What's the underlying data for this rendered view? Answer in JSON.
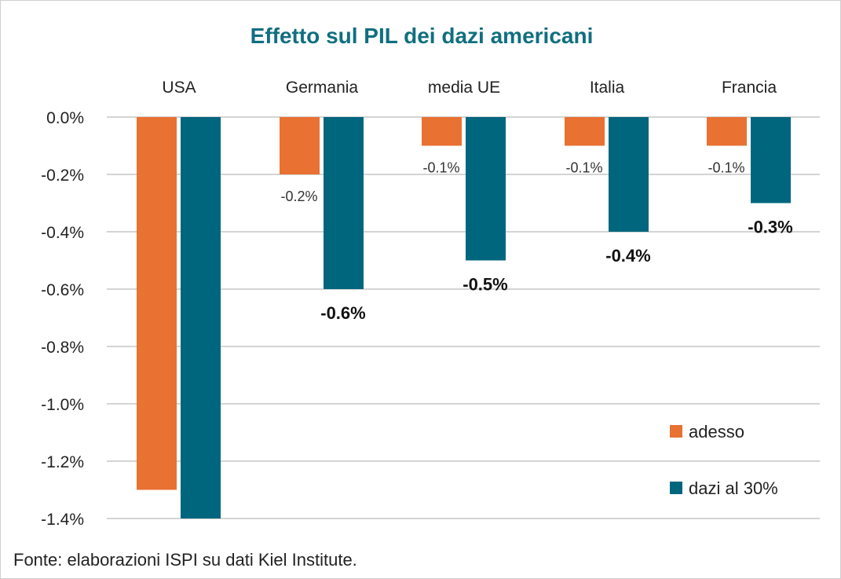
{
  "chart_data": {
    "type": "bar",
    "title": "Effetto sul PIL dei dazi americani",
    "categories": [
      "USA",
      "Germania",
      "media UE",
      "Italia",
      "Francia"
    ],
    "series": [
      {
        "name": "adesso",
        "color": "#E97132",
        "values": [
          -1.3,
          -0.2,
          -0.1,
          -0.1,
          -0.1
        ],
        "labels": [
          null,
          "-0.2%",
          "-0.1%",
          "-0.1%",
          "-0.1%"
        ]
      },
      {
        "name": "dazi al 30%",
        "color": "#00667E",
        "values": [
          -1.4,
          -0.6,
          -0.5,
          -0.4,
          -0.3
        ],
        "labels": [
          null,
          "-0.6%",
          "-0.5%",
          "-0.4%",
          "-0.3%"
        ]
      }
    ],
    "yticks": [
      "0.0%",
      "-0.2%",
      "-0.4%",
      "-0.6%",
      "-0.8%",
      "-1.0%",
      "-1.2%",
      "-1.4%"
    ],
    "ytick_values": [
      0,
      -0.2,
      -0.4,
      -0.6,
      -0.8,
      -1.0,
      -1.2,
      -1.4
    ],
    "ylim": [
      -1.4,
      0
    ],
    "xlabel": "",
    "ylabel": "",
    "grid": true,
    "legend_position": "bottom-right"
  },
  "source": "Fonte: elaborazioni ISPI su dati Kiel Institute."
}
